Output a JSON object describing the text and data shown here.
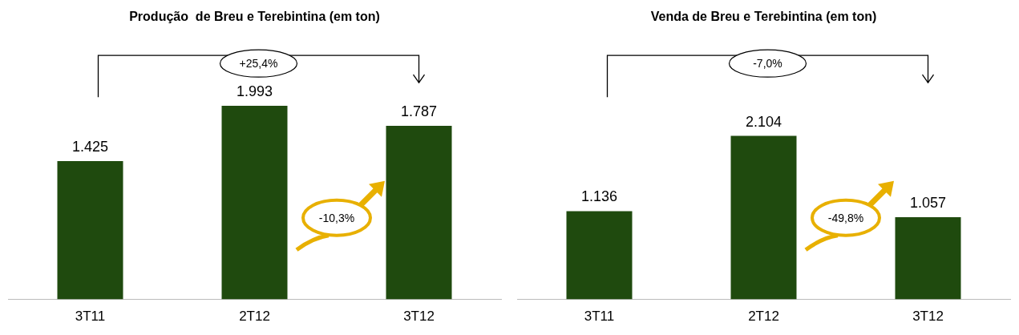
{
  "chart_data": [
    {
      "type": "bar",
      "title": "Produção  de Breu e Terebintina (em ton)",
      "categories": [
        "3T11",
        "2T12",
        "3T12"
      ],
      "values": [
        1425,
        1993,
        1787
      ],
      "value_labels": [
        "1.425",
        "1.993",
        "1.787"
      ],
      "color": "#1f4a0e",
      "legend": false,
      "annotations": [
        "+25,4%",
        "-10,3%"
      ]
    },
    {
      "type": "bar",
      "title": "Venda de Breu e Terebintina (em ton)",
      "categories": [
        "3T11",
        "2T12",
        "3T12"
      ],
      "values": [
        1136,
        2104,
        1057
      ],
      "value_labels": [
        "1.136",
        "2.104",
        "1.057"
      ],
      "color": "#1f4a0e",
      "legend": false,
      "annotations": [
        "-7,0%",
        "-49,8%"
      ]
    }
  ]
}
